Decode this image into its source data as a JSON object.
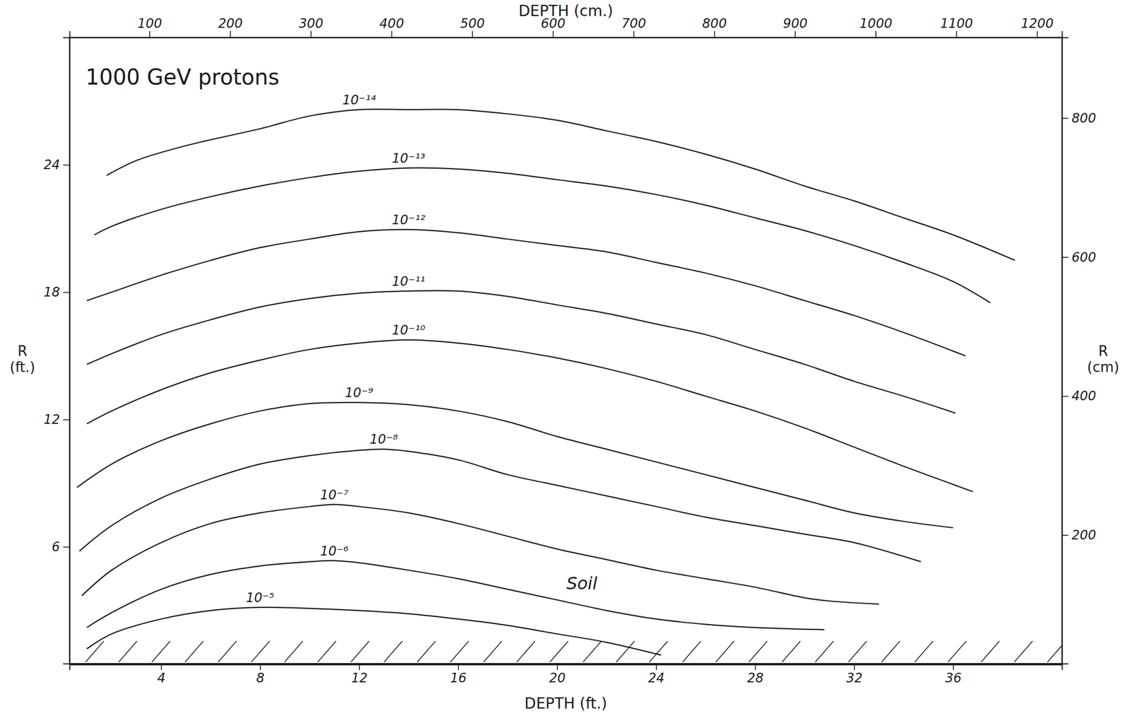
{
  "chart_data": {
    "type": "line",
    "title": "1000 GeV protons",
    "x_label": "DEPTH (ft.)",
    "x2_label": "DEPTH (cm.)",
    "y_label": "R (ft.)",
    "y2_label": "R (cm)",
    "xlim": [
      0.3,
      40.4
    ],
    "xticks": [
      4,
      8,
      12,
      16,
      20,
      24,
      28,
      32,
      36
    ],
    "x2lim": [
      1,
      1231
    ],
    "x2ticks": [
      100,
      200,
      300,
      400,
      500,
      600,
      700,
      800,
      900,
      1000,
      1100,
      1200
    ],
    "ylim": [
      0.5,
      30
    ],
    "yticks": [
      6,
      12,
      18,
      24
    ],
    "y2lim": [
      15,
      916
    ],
    "y2ticks": [
      200,
      400,
      600,
      800
    ],
    "grid": false,
    "color": "#1a1a1a",
    "series": [
      {
        "name": "10⁻⁵",
        "x": [
          1.0,
          2,
          4,
          6,
          8,
          10,
          12,
          14,
          16,
          18,
          20,
          22,
          24.2
        ],
        "values": [
          1.2,
          1.9,
          2.6,
          3.0,
          3.15,
          3.1,
          3.0,
          2.85,
          2.6,
          2.3,
          1.9,
          1.5,
          0.9
        ]
      },
      {
        "name": "10⁻⁶",
        "x": [
          1.0,
          2,
          4,
          6,
          8,
          10,
          11,
          12,
          14,
          16,
          18,
          20,
          22,
          24,
          26,
          28,
          30.8
        ],
        "values": [
          2.2,
          2.9,
          4.0,
          4.7,
          5.1,
          5.3,
          5.35,
          5.25,
          4.9,
          4.5,
          4.0,
          3.5,
          3.0,
          2.6,
          2.35,
          2.2,
          2.1
        ]
      },
      {
        "name": "10⁻⁷",
        "x": [
          0.8,
          2,
          4,
          6,
          8,
          10,
          11,
          12,
          14,
          16,
          18,
          20,
          22,
          24,
          26,
          28,
          30,
          31,
          33
        ],
        "values": [
          3.7,
          4.9,
          6.2,
          7.1,
          7.6,
          7.9,
          8.0,
          7.9,
          7.6,
          7.1,
          6.5,
          5.9,
          5.4,
          4.9,
          4.5,
          4.1,
          3.6,
          3.45,
          3.3
        ]
      },
      {
        "name": "10⁻⁸",
        "x": [
          0.7,
          2,
          4,
          6,
          8,
          10,
          12,
          13,
          14,
          16,
          18,
          20,
          22,
          24,
          26,
          28,
          30,
          32,
          34.7
        ],
        "values": [
          5.8,
          7.0,
          8.3,
          9.2,
          9.9,
          10.3,
          10.55,
          10.6,
          10.5,
          10.1,
          9.4,
          8.9,
          8.4,
          7.9,
          7.4,
          7.0,
          6.6,
          6.2,
          5.3
        ]
      },
      {
        "name": "10⁻⁹",
        "x": [
          0.6,
          2,
          4,
          6,
          8,
          10,
          12,
          14,
          16,
          18,
          20,
          22,
          24,
          26,
          28,
          30,
          32,
          34,
          36
        ],
        "values": [
          8.8,
          9.9,
          11.0,
          11.8,
          12.4,
          12.75,
          12.8,
          12.7,
          12.4,
          11.9,
          11.2,
          10.6,
          10.0,
          9.4,
          8.8,
          8.2,
          7.6,
          7.2,
          6.9
        ]
      },
      {
        "name": "10⁻¹⁰",
        "x": [
          1.0,
          2,
          4,
          6,
          8,
          10,
          12,
          14,
          16,
          18,
          20,
          22,
          24,
          26,
          28,
          30,
          32,
          34,
          36.8
        ],
        "values": [
          11.8,
          12.4,
          13.4,
          14.2,
          14.8,
          15.3,
          15.6,
          15.75,
          15.6,
          15.3,
          14.9,
          14.4,
          13.8,
          13.1,
          12.4,
          11.6,
          10.7,
          9.8,
          8.6
        ]
      },
      {
        "name": "10⁻¹¹",
        "x": [
          1.0,
          2,
          4,
          6,
          8,
          10,
          12,
          14,
          16,
          18,
          20,
          22,
          24,
          26,
          28,
          30,
          32,
          34,
          36.1
        ],
        "values": [
          14.6,
          15.1,
          16.0,
          16.7,
          17.3,
          17.7,
          17.95,
          18.05,
          18.05,
          17.8,
          17.4,
          17.0,
          16.5,
          16.0,
          15.3,
          14.6,
          13.8,
          13.1,
          12.3
        ]
      },
      {
        "name": "10⁻¹²",
        "x": [
          1.0,
          2,
          4,
          6,
          8,
          10,
          12,
          14,
          16,
          18,
          20,
          22,
          24,
          26,
          28,
          30,
          32,
          34,
          36.5
        ],
        "values": [
          17.6,
          18.0,
          18.8,
          19.5,
          20.1,
          20.5,
          20.85,
          20.95,
          20.8,
          20.5,
          20.2,
          19.9,
          19.4,
          18.9,
          18.3,
          17.6,
          16.9,
          16.1,
          15.0
        ]
      },
      {
        "name": "10⁻¹³",
        "x": [
          1.3,
          2,
          4,
          6,
          8,
          10,
          12,
          14,
          16,
          18,
          20,
          22,
          24,
          26,
          28,
          30,
          32,
          34,
          36,
          37.5
        ],
        "values": [
          20.7,
          21.1,
          21.9,
          22.5,
          23.0,
          23.4,
          23.7,
          23.85,
          23.8,
          23.6,
          23.3,
          23.0,
          22.6,
          22.1,
          21.5,
          20.9,
          20.2,
          19.4,
          18.5,
          17.5
        ]
      },
      {
        "name": "10⁻¹⁴",
        "x": [
          1.8,
          3,
          5,
          8,
          10,
          12,
          14,
          16,
          18,
          20,
          22,
          24,
          26,
          28,
          30,
          32,
          34,
          36,
          38.5
        ],
        "values": [
          23.5,
          24.2,
          24.9,
          25.7,
          26.3,
          26.6,
          26.6,
          26.6,
          26.4,
          26.1,
          25.6,
          25.1,
          24.5,
          23.8,
          23.0,
          22.3,
          21.5,
          20.7,
          19.5
        ]
      }
    ],
    "annotations": [
      {
        "text": "Soil",
        "x": 21,
        "y": 4.0
      }
    ]
  }
}
